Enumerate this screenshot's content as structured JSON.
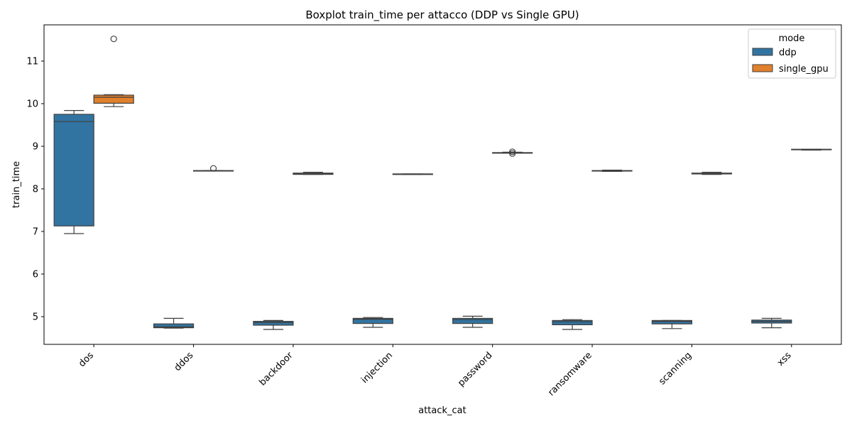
{
  "chart_data": {
    "type": "boxplot",
    "title": "Boxplot train_time per attacco (DDP vs Single GPU)",
    "xlabel": "attack_cat",
    "ylabel": "train_time",
    "ylim": [
      4.35,
      11.85
    ],
    "yticks": [
      5,
      6,
      7,
      8,
      9,
      10,
      11
    ],
    "categories": [
      "dos",
      "ddos",
      "backdoor",
      "injection",
      "password",
      "ransomware",
      "scanning",
      "xss"
    ],
    "legend": {
      "title": "mode",
      "position": "top-right"
    },
    "grid": false,
    "series": [
      {
        "name": "ddp",
        "color": "#3274a1",
        "boxes": [
          {
            "whislo": 6.95,
            "q1": 7.13,
            "med": 9.58,
            "q3": 9.75,
            "whishi": 9.84,
            "fliers": []
          },
          {
            "whislo": 4.73,
            "q1": 4.74,
            "med": 4.76,
            "q3": 4.83,
            "whishi": 4.96,
            "fliers": []
          },
          {
            "whislo": 4.7,
            "q1": 4.8,
            "med": 4.86,
            "q3": 4.89,
            "whishi": 4.91,
            "fliers": []
          },
          {
            "whislo": 4.75,
            "q1": 4.84,
            "med": 4.94,
            "q3": 4.96,
            "whishi": 4.98,
            "fliers": []
          },
          {
            "whislo": 4.75,
            "q1": 4.84,
            "med": 4.93,
            "q3": 4.96,
            "whishi": 5.01,
            "fliers": []
          },
          {
            "whislo": 4.7,
            "q1": 4.81,
            "med": 4.88,
            "q3": 4.91,
            "whishi": 4.93,
            "fliers": []
          },
          {
            "whislo": 4.72,
            "q1": 4.83,
            "med": 4.89,
            "q3": 4.91,
            "whishi": 4.91,
            "fliers": []
          },
          {
            "whislo": 4.74,
            "q1": 4.85,
            "med": 4.89,
            "q3": 4.92,
            "whishi": 4.96,
            "fliers": []
          }
        ]
      },
      {
        "name": "single_gpu",
        "color": "#e1812c",
        "boxes": [
          {
            "whislo": 9.93,
            "q1": 10.01,
            "med": 10.15,
            "q3": 10.2,
            "whishi": 10.21,
            "fliers": [
              11.52
            ]
          },
          {
            "whislo": 8.42,
            "q1": 8.42,
            "med": 8.42,
            "q3": 8.43,
            "whishi": 8.43,
            "fliers": [
              8.48
            ]
          },
          {
            "whislo": 8.34,
            "q1": 8.34,
            "med": 8.36,
            "q3": 8.37,
            "whishi": 8.39,
            "fliers": []
          },
          {
            "whislo": 8.34,
            "q1": 8.35,
            "med": 8.35,
            "q3": 8.35,
            "whishi": 8.35,
            "fliers": []
          },
          {
            "whislo": 8.85,
            "q1": 8.85,
            "med": 8.85,
            "q3": 8.85,
            "whishi": 8.86,
            "fliers": [
              8.83,
              8.87
            ]
          },
          {
            "whislo": 8.41,
            "q1": 8.42,
            "med": 8.42,
            "q3": 8.43,
            "whishi": 8.44,
            "fliers": []
          },
          {
            "whislo": 8.34,
            "q1": 8.35,
            "med": 8.36,
            "q3": 8.37,
            "whishi": 8.39,
            "fliers": []
          },
          {
            "whislo": 8.91,
            "q1": 8.92,
            "med": 8.92,
            "q3": 8.93,
            "whishi": 8.93,
            "fliers": []
          }
        ]
      }
    ]
  }
}
